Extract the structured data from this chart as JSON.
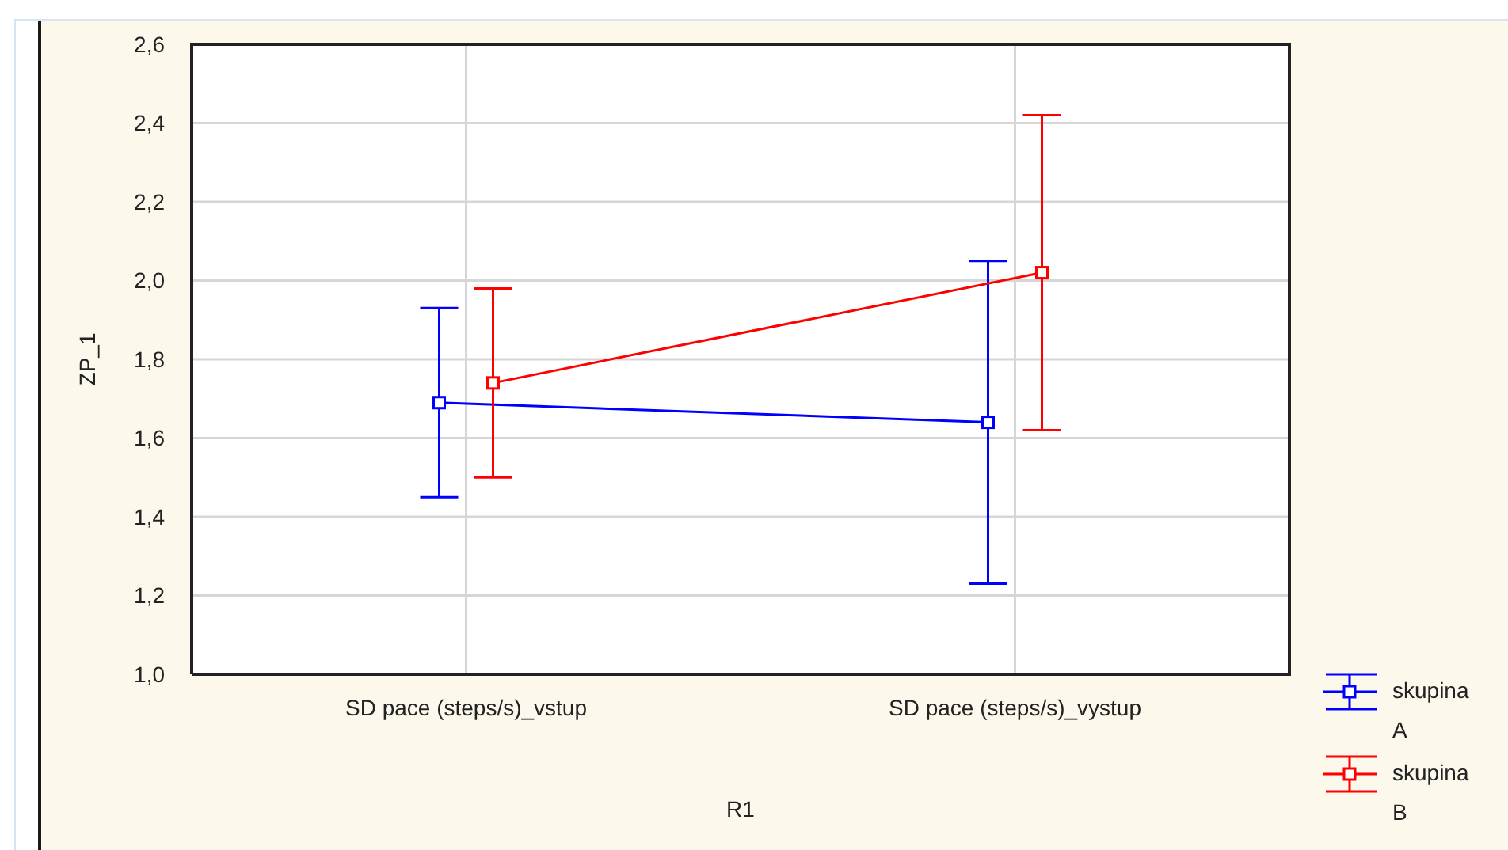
{
  "chart_data": {
    "type": "line",
    "categories": [
      "SD pace (steps/s)_vstup",
      "SD pace (steps/s)_vystup"
    ],
    "xlabel": "R1",
    "ylabel": "ZP_1",
    "ylim": [
      1.0,
      2.6
    ],
    "yticks": [
      {
        "value": 1.0,
        "label": "1,0"
      },
      {
        "value": 1.2,
        "label": "1,2"
      },
      {
        "value": 1.4,
        "label": "1,4"
      },
      {
        "value": 1.6,
        "label": "1,6"
      },
      {
        "value": 1.8,
        "label": "1,8"
      },
      {
        "value": 2.0,
        "label": "2,0"
      },
      {
        "value": 2.2,
        "label": "2,2"
      },
      {
        "value": 2.4,
        "label": "2,4"
      },
      {
        "value": 2.6,
        "label": "2,6"
      }
    ],
    "grid": true,
    "legend": "bottom right",
    "marker": "square",
    "line_style": "solid",
    "series": [
      {
        "name": "skupina A",
        "color": "#0000ff",
        "values": [
          1.69,
          1.64
        ],
        "errors": [
          0.24,
          0.41
        ]
      },
      {
        "name": "skupina B",
        "color": "#ff0000",
        "values": [
          1.74,
          2.02
        ],
        "errors": [
          0.24,
          0.4
        ]
      }
    ]
  }
}
